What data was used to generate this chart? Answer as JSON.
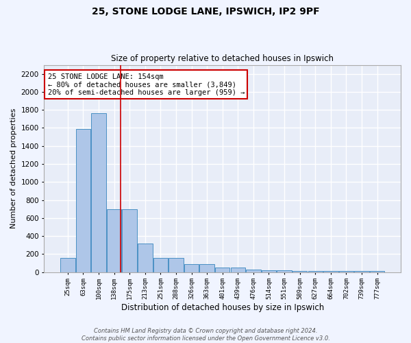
{
  "title1": "25, STONE LODGE LANE, IPSWICH, IP2 9PF",
  "title2": "Size of property relative to detached houses in Ipswich",
  "xlabel": "Distribution of detached houses by size in Ipswich",
  "ylabel": "Number of detached properties",
  "categories": [
    "25sqm",
    "63sqm",
    "100sqm",
    "138sqm",
    "175sqm",
    "213sqm",
    "251sqm",
    "288sqm",
    "326sqm",
    "363sqm",
    "401sqm",
    "439sqm",
    "476sqm",
    "514sqm",
    "551sqm",
    "589sqm",
    "627sqm",
    "664sqm",
    "702sqm",
    "739sqm",
    "777sqm"
  ],
  "values": [
    155,
    1590,
    1760,
    700,
    700,
    320,
    155,
    155,
    85,
    85,
    50,
    50,
    25,
    20,
    20,
    15,
    15,
    15,
    15,
    15,
    15
  ],
  "bar_color": "#aec6e8",
  "bar_edge_color": "#4a90c4",
  "background_color": "#e8edf8",
  "grid_color": "#ffffff",
  "annotation_text": "25 STONE LODGE LANE: 154sqm\n← 80% of detached houses are smaller (3,849)\n20% of semi-detached houses are larger (959) →",
  "annotation_box_color": "#ffffff",
  "annotation_box_edge": "#cc0000",
  "ylim": [
    0,
    2300
  ],
  "yticks": [
    0,
    200,
    400,
    600,
    800,
    1000,
    1200,
    1400,
    1600,
    1800,
    2000,
    2200
  ],
  "footer1": "Contains HM Land Registry data © Crown copyright and database right 2024.",
  "footer2": "Contains public sector information licensed under the Open Government Licence v3.0."
}
